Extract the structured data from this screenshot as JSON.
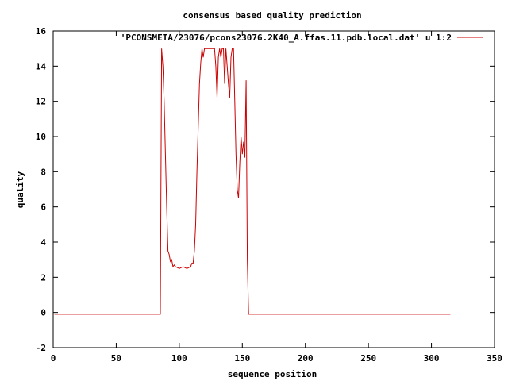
{
  "chart_data": {
    "type": "line",
    "title": "consensus based quality prediction",
    "xlabel": "sequence position",
    "ylabel": "quality",
    "xlim": [
      0,
      350
    ],
    "ylim": [
      -2,
      16
    ],
    "x_ticks": [
      0,
      50,
      100,
      150,
      200,
      250,
      300,
      350
    ],
    "y_ticks": [
      -2,
      0,
      2,
      4,
      6,
      8,
      10,
      12,
      14,
      16
    ],
    "grid": false,
    "legend_position": "top-right",
    "series": [
      {
        "name": "'PCONSMETA/23076/pcons23076.2K40_A.ffas.11.pdb.local.dat' u 1:2",
        "color": "#cc0000",
        "points": [
          [
            1,
            -0.1
          ],
          [
            85,
            -0.1
          ],
          [
            86,
            15.0
          ],
          [
            87,
            14.0
          ],
          [
            88,
            12.0
          ],
          [
            89,
            9.0
          ],
          [
            90,
            6.0
          ],
          [
            91,
            3.5
          ],
          [
            92,
            3.3
          ],
          [
            93,
            2.9
          ],
          [
            94,
            3.0
          ],
          [
            95,
            2.6
          ],
          [
            96,
            2.7
          ],
          [
            97,
            2.6
          ],
          [
            100,
            2.5
          ],
          [
            103,
            2.6
          ],
          [
            106,
            2.5
          ],
          [
            109,
            2.6
          ],
          [
            110,
            2.8
          ],
          [
            111,
            2.8
          ],
          [
            112,
            3.5
          ],
          [
            113,
            5.0
          ],
          [
            114,
            8.0
          ],
          [
            115,
            10.5
          ],
          [
            116,
            13.0
          ],
          [
            117,
            14.2
          ],
          [
            118,
            15.0
          ],
          [
            119,
            14.5
          ],
          [
            120,
            15.0
          ],
          [
            125,
            15.0
          ],
          [
            128,
            15.0
          ],
          [
            129,
            14.0
          ],
          [
            130,
            12.2
          ],
          [
            131,
            14.5
          ],
          [
            132,
            15.0
          ],
          [
            133,
            14.5
          ],
          [
            134,
            15.0
          ],
          [
            135,
            15.0
          ],
          [
            136,
            13.0
          ],
          [
            137,
            15.0
          ],
          [
            138,
            14.0
          ],
          [
            139,
            13.0
          ],
          [
            140,
            12.2
          ],
          [
            141,
            14.5
          ],
          [
            142,
            15.0
          ],
          [
            143,
            15.0
          ],
          [
            144,
            12.0
          ],
          [
            145,
            9.0
          ],
          [
            146,
            7.0
          ],
          [
            147,
            6.5
          ],
          [
            148,
            8.5
          ],
          [
            149,
            10.0
          ],
          [
            150,
            9.0
          ],
          [
            151,
            9.7
          ],
          [
            152,
            8.8
          ],
          [
            153,
            13.2
          ],
          [
            154,
            3.0
          ],
          [
            155,
            -0.1
          ],
          [
            315,
            -0.1
          ]
        ]
      }
    ]
  }
}
